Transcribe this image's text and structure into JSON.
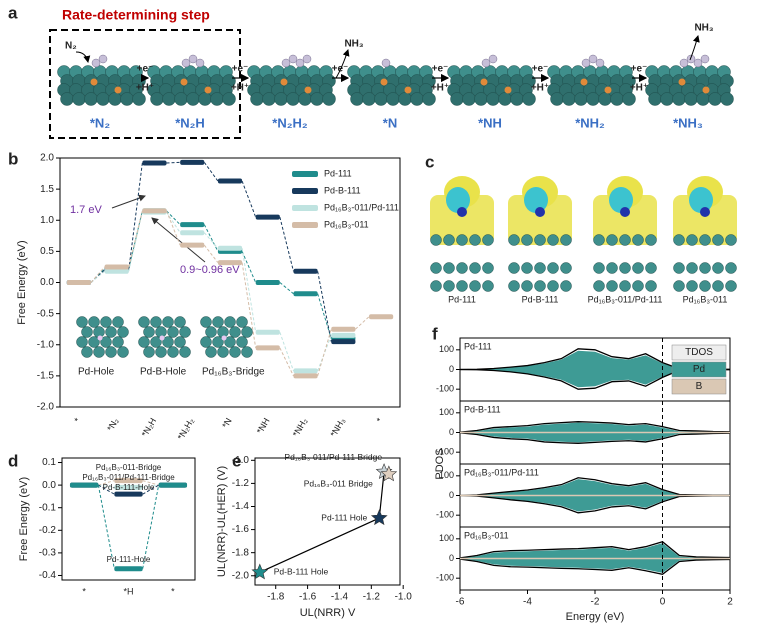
{
  "panel_a": {
    "label": "a",
    "rds_title": "Rate-determining step",
    "adsorbate_in": "N₂",
    "states": [
      "*N₂",
      "*N₂H",
      "*N₂H₂",
      "*N",
      "*NH",
      "*NH₂",
      "*NH₃"
    ],
    "steps": [
      {
        "top": "+e⁻",
        "bottom": "+H⁺"
      },
      {
        "top": "+e⁻",
        "bottom": "+H⁺"
      },
      {
        "top": "+e⁻",
        "release": "NH₃"
      },
      {
        "top": "+e⁻",
        "bottom": "+H⁺"
      },
      {
        "top": "+e⁻",
        "bottom": "+H⁺"
      },
      {
        "top": "+e⁻",
        "bottom": "+H⁺"
      }
    ],
    "final_release": "NH₃"
  },
  "panel_c": {
    "label": "c",
    "structures": [
      "Pd-111",
      "Pd-B-111",
      "Pd₁₆B₃-011/Pd-111",
      "Pd₁₆B₃-011"
    ]
  },
  "chart_data": [
    {
      "type": "energy_levels",
      "label": "b",
      "ylabel": "Free Energy (eV)",
      "categories": [
        "*",
        "*N₂",
        "*N₂H",
        "*N₂H₂",
        "*N",
        "*NH",
        "*NH₂",
        "*NH₃",
        "*"
      ],
      "series": [
        {
          "name": "Pd-111",
          "color": "#1f8c8c",
          "values": [
            0,
            0.22,
            1.15,
            0.93,
            0.5,
            0.0,
            -0.18,
            -0.9,
            null
          ]
        },
        {
          "name": "Pd-B-111",
          "color": "#17395c",
          "values": [
            0,
            0.2,
            1.92,
            1.93,
            1.63,
            1.05,
            0.18,
            -0.95,
            null
          ]
        },
        {
          "name": "Pd₁₆B₃-011/Pd-111",
          "color": "#bfe3e0",
          "values": [
            0,
            0.18,
            1.13,
            0.8,
            0.55,
            -0.8,
            -1.42,
            -0.85,
            null
          ]
        },
        {
          "name": "Pd₁₆B₃-011",
          "color": "#d4bca7",
          "values": [
            0,
            0.25,
            1.15,
            0.6,
            0.32,
            -1.05,
            -1.5,
            -0.75,
            -0.55
          ]
        }
      ],
      "ylim": [
        -2,
        2
      ],
      "yticks": [
        {
          "value": -2,
          "label": "-2.0"
        },
        -1.5,
        {
          "value": -1,
          "label": "-1.0"
        },
        -0.5,
        {
          "value": 0,
          "label": "0.0"
        },
        0.5,
        {
          "value": 1,
          "label": "1.0"
        },
        1.5,
        {
          "value": 2,
          "label": "2.0"
        }
      ],
      "legend": "upper right",
      "annotations": [
        "1.7 eV",
        "0.9~0.96 eV"
      ],
      "insets": [
        "Pd-Hole",
        "Pd-B-Hole",
        "Pd₁₆B₃-Bridge"
      ]
    },
    {
      "type": "energy_levels",
      "label": "d",
      "ylabel": "Free Energy (eV)",
      "categories": [
        "*",
        "*H",
        "*"
      ],
      "series": [
        {
          "name": "Pd₁₆B₃-011-Bridge",
          "color": "#d4bca7",
          "values": [
            0,
            0.02,
            0
          ]
        },
        {
          "name": "Pd₁₆B₃-011/Pd-111-Bridge",
          "color": "#bfe3e0",
          "values": [
            0,
            -0.01,
            0
          ]
        },
        {
          "name": "Pd-B-111-Hole",
          "color": "#17395c",
          "values": [
            0,
            -0.04,
            0
          ]
        },
        {
          "name": "Pd-111-Hole",
          "color": "#1f8c8c",
          "values": [
            0,
            -0.37,
            0
          ]
        }
      ],
      "ylim": [
        -0.42,
        0.12
      ],
      "yticks": [
        -0.4,
        -0.3,
        -0.2,
        -0.1,
        {
          "value": 0,
          "label": "0.0"
        },
        0.1
      ]
    },
    {
      "type": "scatter",
      "label": "e",
      "xlabel": "UL(NRR) V",
      "ylabel": "UL(NRR)-UL(HER) (V)",
      "series": [
        {
          "name": "Pd₁₆B₃-011/Pd-111 Bridge",
          "color": "#c9d3d8",
          "x": [
            -1.12
          ],
          "values": [
            -1.1
          ]
        },
        {
          "name": "Pd₁₆B₃-011 Bridge",
          "color": "#dfcfc0",
          "x": [
            -1.09
          ],
          "values": [
            -1.12
          ]
        },
        {
          "name": "Pd-111 Hole",
          "color": "#17395c",
          "x": [
            -1.15
          ],
          "values": [
            -1.5
          ]
        },
        {
          "name": "Pd-B-111 Hole",
          "color": "#1f8c8c",
          "x": [
            -1.9
          ],
          "values": [
            -1.97
          ]
        }
      ],
      "xlim": [
        -1.93,
        -1.02
      ],
      "xticks": [
        -1.8,
        -1.6,
        -1.4,
        -1.2,
        {
          "value": -1,
          "label": "-1.0"
        }
      ],
      "ylim": [
        -2.08,
        -0.98
      ],
      "yticks": [
        {
          "value": -2,
          "label": "-2.0"
        },
        -1.8,
        -1.6,
        -1.4,
        -1.2,
        {
          "value": -1,
          "label": "-1.0"
        }
      ]
    },
    {
      "type": "pdos",
      "label": "f",
      "xlabel": "Energy  (eV)",
      "ylabel": "PDOS",
      "x": [
        -6,
        -5.5,
        -5,
        -4.5,
        -4,
        -3.5,
        -3,
        -2.5,
        -2,
        -1.5,
        -1,
        -0.5,
        0,
        0.5,
        1,
        1.5,
        2
      ],
      "xlim": [
        -6,
        2
      ],
      "xticks": [
        -6,
        -4,
        -2,
        0,
        2
      ],
      "ylim": [
        -160,
        160
      ],
      "yticks": [
        -100,
        0,
        100
      ],
      "fermi_level": 0,
      "legend": "upper right",
      "series": [
        {
          "name": "TDOS",
          "color": "#000000"
        },
        {
          "name": "Pd",
          "color": "#3e9b95"
        },
        {
          "name": "B",
          "color": "#dac8b4"
        }
      ],
      "panels": [
        {
          "name": "Pd-111",
          "tdos_up": [
            0,
            1,
            5,
            12,
            20,
            35,
            55,
            105,
            100,
            65,
            55,
            80,
            35,
            4,
            2,
            1,
            1
          ],
          "tdos_down": [
            0,
            -1,
            -5,
            -12,
            -22,
            -38,
            -58,
            -100,
            -95,
            -62,
            -58,
            -85,
            -40,
            -4,
            -2,
            -1,
            -1
          ],
          "pd_up": [
            0,
            1,
            4,
            10,
            18,
            31,
            50,
            95,
            90,
            58,
            50,
            72,
            31,
            3,
            1,
            1,
            0
          ],
          "pd_down": [
            0,
            -1,
            -4,
            -10,
            -20,
            -34,
            -52,
            -90,
            -85,
            -56,
            -52,
            -77,
            -36,
            -3,
            -1,
            -1,
            0
          ]
        },
        {
          "name": "Pd-B-111",
          "tdos_up": [
            2,
            10,
            25,
            30,
            35,
            45,
            50,
            55,
            52,
            48,
            40,
            45,
            30,
            10,
            8,
            5,
            4
          ],
          "tdos_down": [
            -2,
            -10,
            -25,
            -32,
            -36,
            -48,
            -52,
            -55,
            -50,
            -45,
            -42,
            -48,
            -32,
            -10,
            -8,
            -5,
            -4
          ],
          "pd_up": [
            1,
            7,
            20,
            26,
            30,
            40,
            45,
            50,
            47,
            43,
            35,
            40,
            25,
            6,
            4,
            3,
            2
          ],
          "pd_down": [
            -1,
            -7,
            -20,
            -27,
            -31,
            -43,
            -47,
            -50,
            -45,
            -40,
            -37,
            -43,
            -27,
            -6,
            -4,
            -3,
            -2
          ]
        },
        {
          "name": "Pd₁₆B₃-011/Pd-111",
          "tdos_up": [
            0,
            3,
            12,
            20,
            28,
            40,
            55,
            90,
            80,
            60,
            50,
            65,
            30,
            5,
            3,
            2,
            2
          ],
          "tdos_down": [
            0,
            -3,
            -12,
            -22,
            -30,
            -42,
            -57,
            -88,
            -78,
            -58,
            -52,
            -68,
            -32,
            -5,
            -3,
            -2,
            -2
          ],
          "pd_up": [
            0,
            2,
            10,
            17,
            25,
            36,
            50,
            83,
            73,
            54,
            45,
            59,
            26,
            3,
            2,
            1,
            1
          ],
          "pd_down": [
            0,
            -2,
            -10,
            -19,
            -27,
            -38,
            -52,
            -81,
            -71,
            -52,
            -47,
            -62,
            -28,
            -3,
            -2,
            -1,
            -1
          ]
        },
        {
          "name": "Pd₁₆B₃-011",
          "tdos_up": [
            3,
            15,
            35,
            40,
            42,
            45,
            48,
            50,
            55,
            60,
            45,
            60,
            85,
            15,
            8,
            6,
            5
          ],
          "tdos_down": [
            -3,
            -15,
            -35,
            -42,
            -44,
            -47,
            -50,
            -52,
            -56,
            -60,
            -47,
            -62,
            -80,
            -15,
            -8,
            -6,
            -5
          ],
          "pd_up": [
            2,
            12,
            30,
            35,
            37,
            40,
            43,
            45,
            50,
            54,
            40,
            54,
            78,
            10,
            5,
            4,
            3
          ],
          "pd_down": [
            -2,
            -12,
            -30,
            -37,
            -39,
            -42,
            -45,
            -47,
            -51,
            -54,
            -42,
            -56,
            -73,
            -10,
            -5,
            -4,
            -3
          ]
        }
      ]
    }
  ]
}
